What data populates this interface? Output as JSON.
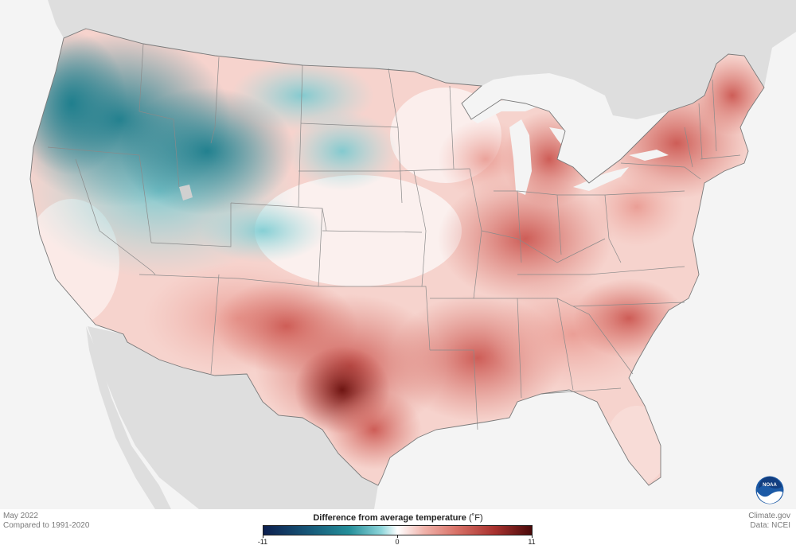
{
  "caption": {
    "date": "May 2022",
    "baseline": "Compared to 1991-2020",
    "credit_site": "Climate.gov",
    "credit_data": "Data: NCEI"
  },
  "legend": {
    "title": "Difference from average temperature",
    "unit": "(˚F)",
    "min_label": "-11",
    "mid_label": "0",
    "max_label": "11",
    "min": -11,
    "max": 11,
    "colors": {
      "cold_extreme": "#0d1f4f",
      "cold": "#258f9a",
      "neutral": "#ffffff",
      "warm": "#d87167",
      "warm_extreme": "#4a0a0a"
    }
  },
  "logo": {
    "name": "noaa-logo",
    "text": "NOAA"
  },
  "map": {
    "region": "Contiguous United States",
    "colors": {
      "land_outside": "#dedede",
      "water": "#f4f4f4",
      "state_border": "#8a8a8a"
    }
  }
}
